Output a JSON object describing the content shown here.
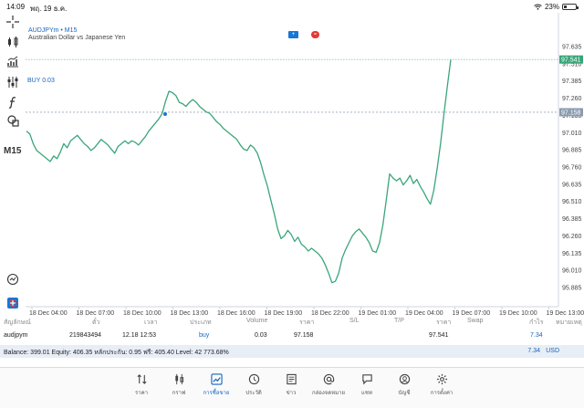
{
  "status": {
    "time": "14:09",
    "date": "พฤ. 19 ธ.ค.",
    "battery": "23%",
    "battery_level": 0.23
  },
  "toolbar": {
    "timeframe": "M15"
  },
  "chart": {
    "symbol": "AUDJPYm • M15",
    "description": "Australian Dollar vs Japanese Yen",
    "buy_label": "BUY 0.03",
    "price_tag_current": "97.541",
    "price_tag_buy": "97.158",
    "price_axis": [
      "97.635",
      "97.510",
      "97.385",
      "97.260",
      "97.135",
      "97.010",
      "96.885",
      "96.760",
      "96.635",
      "96.510",
      "96.385",
      "96.260",
      "96.135",
      "96.010",
      "95.885"
    ],
    "time_axis": [
      "18 Dec 04:00",
      "18 Dec 07:00",
      "18 Dec 10:00",
      "18 Dec 13:00",
      "18 Dec 16:00",
      "18 Dec 19:00",
      "18 Dec 22:00",
      "19 Dec 01:00",
      "19 Dec 04:00",
      "19 Dec 07:00",
      "19 Dec 10:00",
      "19 Dec 13:00"
    ],
    "colors": {
      "line": "#3aa67a",
      "buy_line": "#9aa7b6",
      "current_tag": "#3aa67a",
      "buy_tag": "#8a9bb0",
      "accent": "#1565c0"
    },
    "series": [
      97.02,
      97.0,
      96.93,
      96.88,
      96.86,
      96.84,
      96.82,
      96.8,
      96.84,
      96.82,
      96.87,
      96.93,
      96.9,
      96.95,
      96.97,
      96.99,
      96.96,
      96.93,
      96.91,
      96.88,
      96.9,
      96.93,
      96.96,
      96.94,
      96.92,
      96.89,
      96.86,
      96.91,
      96.93,
      96.95,
      96.93,
      96.95,
      96.94,
      96.92,
      96.95,
      96.98,
      97.02,
      97.05,
      97.08,
      97.11,
      97.15,
      97.24,
      97.31,
      97.3,
      97.28,
      97.23,
      97.22,
      97.2,
      97.23,
      97.25,
      97.23,
      97.2,
      97.18,
      97.16,
      97.15,
      97.12,
      97.09,
      97.07,
      97.04,
      97.02,
      97.0,
      96.98,
      96.96,
      96.92,
      96.89,
      96.88,
      96.92,
      96.9,
      96.86,
      96.79,
      96.7,
      96.62,
      96.52,
      96.42,
      96.31,
      96.24,
      96.26,
      96.3,
      96.27,
      96.22,
      96.25,
      96.2,
      96.18,
      96.15,
      96.17,
      96.15,
      96.13,
      96.1,
      96.05,
      95.99,
      95.92,
      95.93,
      95.99,
      96.1,
      96.16,
      96.21,
      96.26,
      96.29,
      96.31,
      96.28,
      96.25,
      96.21,
      96.15,
      96.14,
      96.21,
      96.34,
      96.52,
      96.71,
      96.68,
      96.66,
      96.68,
      96.63,
      96.66,
      96.7,
      96.64,
      96.67,
      96.62,
      96.58,
      96.53,
      96.49,
      96.59,
      96.75,
      96.93,
      97.15,
      97.35,
      97.54
    ]
  },
  "table": {
    "headers": [
      "สัญลักษณ์",
      "ตั๋ว",
      "เวลา",
      "ประเภท",
      "Volume",
      "ราคา",
      "S/L",
      "T/P",
      "ราคา",
      "Swap",
      "กำไร",
      "หมายเหตุ"
    ],
    "row": {
      "symbol": "audjpym",
      "ticket": "219843494",
      "time": "12.18 12:53",
      "type": "buy",
      "volume": "0.03",
      "open_price": "97.158",
      "sl": "",
      "tp": "",
      "current_price": "97.541",
      "swap": "",
      "profit": "7.34"
    }
  },
  "balance": {
    "text": "Balance: 399.01  Equity: 406.35  หลักประกัน: 0.95  ฟรี: 405.40  Level: 42 773.68%",
    "profit": "7.34",
    "currency": "USD"
  },
  "nav": [
    {
      "label": "ราคา",
      "icon": "arrows-updown-icon"
    },
    {
      "label": "กราฟ",
      "icon": "candles-icon"
    },
    {
      "label": "การซื้อขาย",
      "icon": "trade-chart-icon",
      "active": true
    },
    {
      "label": "ประวัติ",
      "icon": "history-icon"
    },
    {
      "label": "ข่าว",
      "icon": "news-icon"
    },
    {
      "label": "กล่องจดหมาย",
      "icon": "at-icon"
    },
    {
      "label": "แชท",
      "icon": "chat-icon"
    },
    {
      "label": "บัญชี",
      "icon": "account-icon"
    },
    {
      "label": "การตั้งค่า",
      "icon": "gear-icon"
    }
  ]
}
